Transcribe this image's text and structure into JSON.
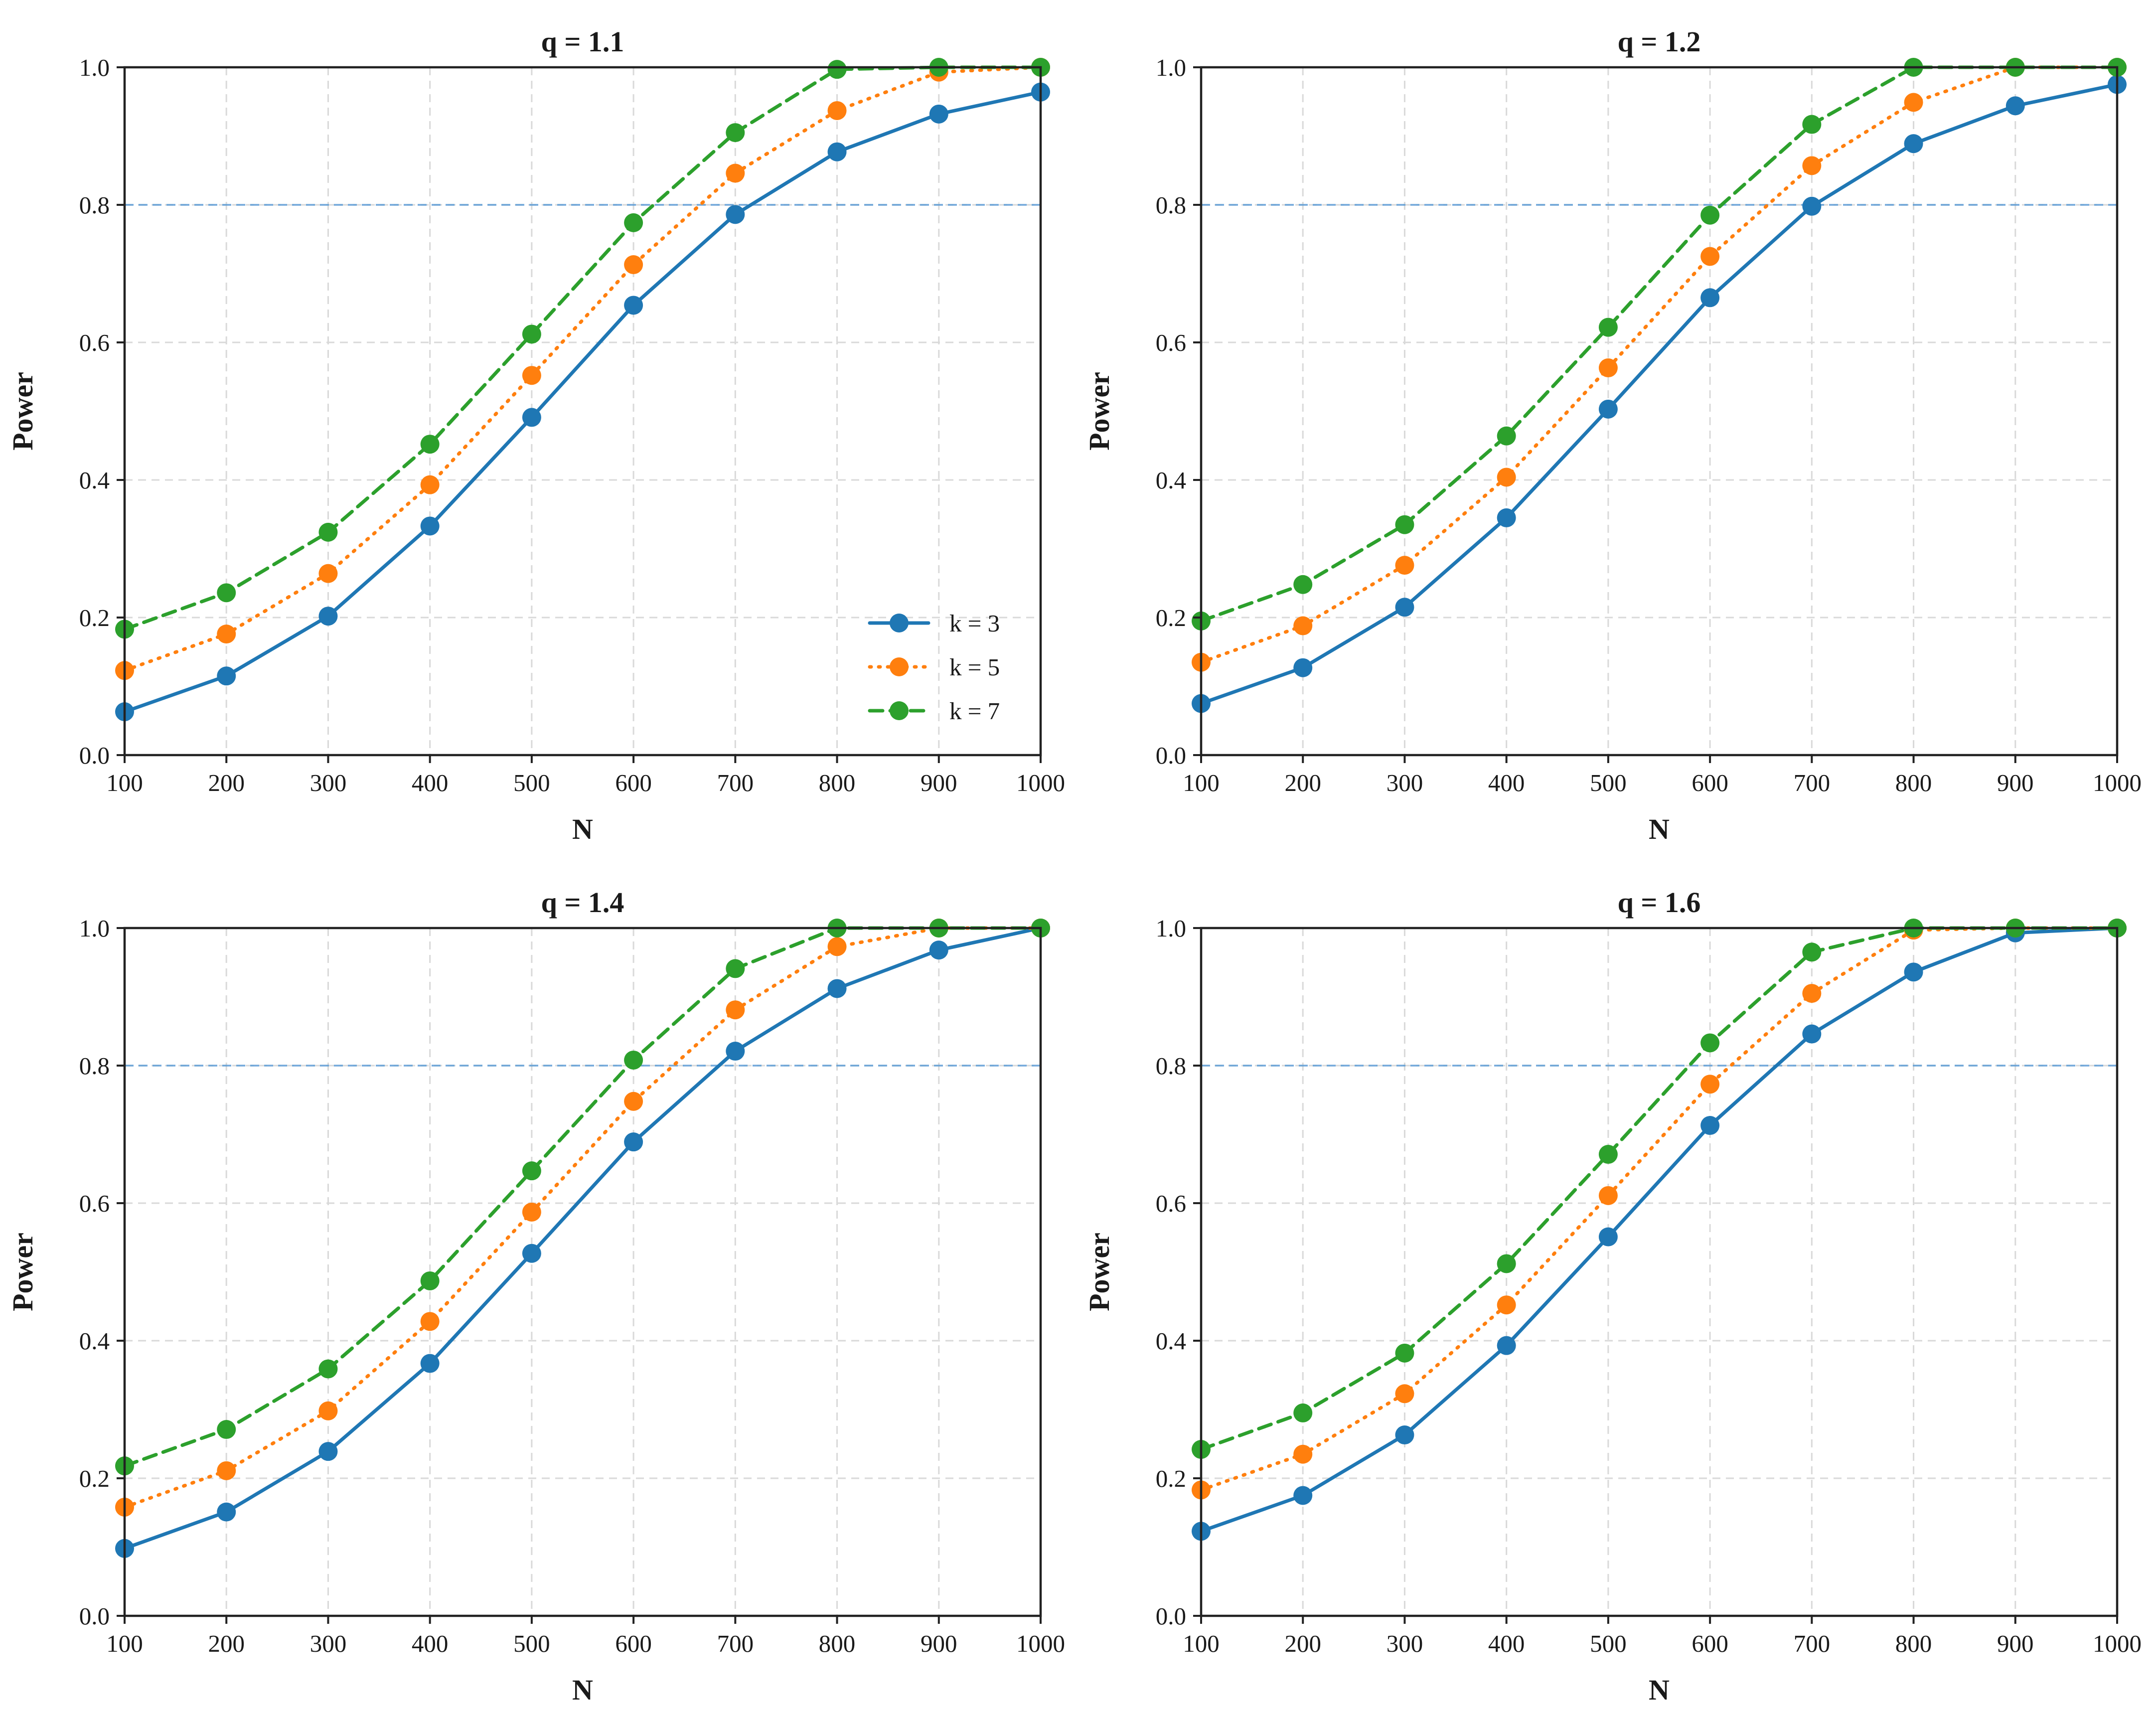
{
  "colors": {
    "k3": "#1f77b4",
    "k5": "#ff7f0e",
    "k7": "#2ca02c",
    "threshold": "#5b9bd5"
  },
  "chart_data": [
    {
      "type": "line",
      "title": "q = 1.1",
      "xlabel": "N",
      "ylabel": "Power",
      "xlim": [
        100,
        1000
      ],
      "ylim": [
        0,
        1.0
      ],
      "xticks": [
        "100",
        "200",
        "300",
        "400",
        "500",
        "600",
        "700",
        "800",
        "900",
        "1000"
      ],
      "yticks": [
        "0.0",
        "0.2",
        "0.4",
        "0.6",
        "0.8",
        "1.0"
      ],
      "grid": true,
      "reference_line": 0.8,
      "legend": {
        "placement": "lower-right",
        "entries": [
          "k = 3",
          "k = 5",
          "k = 7"
        ]
      },
      "x": [
        100,
        200,
        300,
        400,
        500,
        600,
        700,
        800,
        900,
        1000
      ],
      "series": [
        {
          "name": "k = 3",
          "style": "solid",
          "values": [
            0.063,
            0.115,
            0.202,
            0.333,
            0.491,
            0.654,
            0.786,
            0.877,
            0.932,
            0.964
          ]
        },
        {
          "name": "k = 5",
          "style": "dotted",
          "values": [
            0.123,
            0.176,
            0.264,
            0.393,
            0.552,
            0.713,
            0.846,
            0.937,
            0.993,
            1.0
          ]
        },
        {
          "name": "k = 7",
          "style": "dashed",
          "values": [
            0.183,
            0.236,
            0.324,
            0.452,
            0.612,
            0.774,
            0.905,
            0.997,
            1.0,
            1.0
          ]
        }
      ]
    },
    {
      "type": "line",
      "title": "q = 1.2",
      "xlabel": "N",
      "ylabel": "Power",
      "xlim": [
        100,
        1000
      ],
      "ylim": [
        0,
        1.0
      ],
      "xticks": [
        "100",
        "200",
        "300",
        "400",
        "500",
        "600",
        "700",
        "800",
        "900",
        "1000"
      ],
      "yticks": [
        "0.0",
        "0.2",
        "0.4",
        "0.6",
        "0.8",
        "1.0"
      ],
      "grid": true,
      "reference_line": 0.8,
      "legend": null,
      "x": [
        100,
        200,
        300,
        400,
        500,
        600,
        700,
        800,
        900,
        1000
      ],
      "series": [
        {
          "name": "k = 3",
          "style": "solid",
          "values": [
            0.075,
            0.127,
            0.215,
            0.345,
            0.503,
            0.665,
            0.798,
            0.889,
            0.944,
            0.975
          ]
        },
        {
          "name": "k = 5",
          "style": "dotted",
          "values": [
            0.135,
            0.188,
            0.276,
            0.404,
            0.563,
            0.725,
            0.857,
            0.949,
            1.0,
            1.0
          ]
        },
        {
          "name": "k = 7",
          "style": "dashed",
          "values": [
            0.195,
            0.248,
            0.335,
            0.464,
            0.622,
            0.785,
            0.917,
            1.0,
            1.0,
            1.0
          ]
        }
      ]
    },
    {
      "type": "line",
      "title": "q = 1.4",
      "xlabel": "N",
      "ylabel": "Power",
      "xlim": [
        100,
        1000
      ],
      "ylim": [
        0,
        1.0
      ],
      "xticks": [
        "100",
        "200",
        "300",
        "400",
        "500",
        "600",
        "700",
        "800",
        "900",
        "1000"
      ],
      "yticks": [
        "0.0",
        "0.2",
        "0.4",
        "0.6",
        "0.8",
        "1.0"
      ],
      "grid": true,
      "reference_line": 0.8,
      "legend": null,
      "x": [
        100,
        200,
        300,
        400,
        500,
        600,
        700,
        800,
        900,
        1000
      ],
      "series": [
        {
          "name": "k = 3",
          "style": "solid",
          "values": [
            0.098,
            0.151,
            0.239,
            0.367,
            0.527,
            0.689,
            0.821,
            0.912,
            0.968,
            1.0
          ]
        },
        {
          "name": "k = 5",
          "style": "dotted",
          "values": [
            0.158,
            0.211,
            0.298,
            0.428,
            0.587,
            0.748,
            0.881,
            0.973,
            1.0,
            1.0
          ]
        },
        {
          "name": "k = 7",
          "style": "dashed",
          "values": [
            0.218,
            0.271,
            0.359,
            0.487,
            0.647,
            0.808,
            0.941,
            1.0,
            1.0,
            1.0
          ]
        }
      ]
    },
    {
      "type": "line",
      "title": "q = 1.6",
      "xlabel": "N",
      "ylabel": "Power",
      "xlim": [
        100,
        1000
      ],
      "ylim": [
        0,
        1.0
      ],
      "xticks": [
        "100",
        "200",
        "300",
        "400",
        "500",
        "600",
        "700",
        "800",
        "900",
        "1000"
      ],
      "yticks": [
        "0.0",
        "0.2",
        "0.4",
        "0.6",
        "0.8",
        "1.0"
      ],
      "grid": true,
      "reference_line": 0.8,
      "legend": null,
      "x": [
        100,
        200,
        300,
        400,
        500,
        600,
        700,
        800,
        900,
        1000
      ],
      "series": [
        {
          "name": "k = 3",
          "style": "solid",
          "values": [
            0.123,
            0.175,
            0.263,
            0.393,
            0.551,
            0.713,
            0.846,
            0.936,
            0.993,
            1.0
          ]
        },
        {
          "name": "k = 5",
          "style": "dotted",
          "values": [
            0.183,
            0.235,
            0.323,
            0.452,
            0.611,
            0.773,
            0.905,
            0.997,
            1.0,
            1.0
          ]
        },
        {
          "name": "k = 7",
          "style": "dashed",
          "values": [
            0.242,
            0.295,
            0.382,
            0.512,
            0.671,
            0.833,
            0.965,
            1.0,
            1.0,
            1.0
          ]
        }
      ]
    }
  ]
}
